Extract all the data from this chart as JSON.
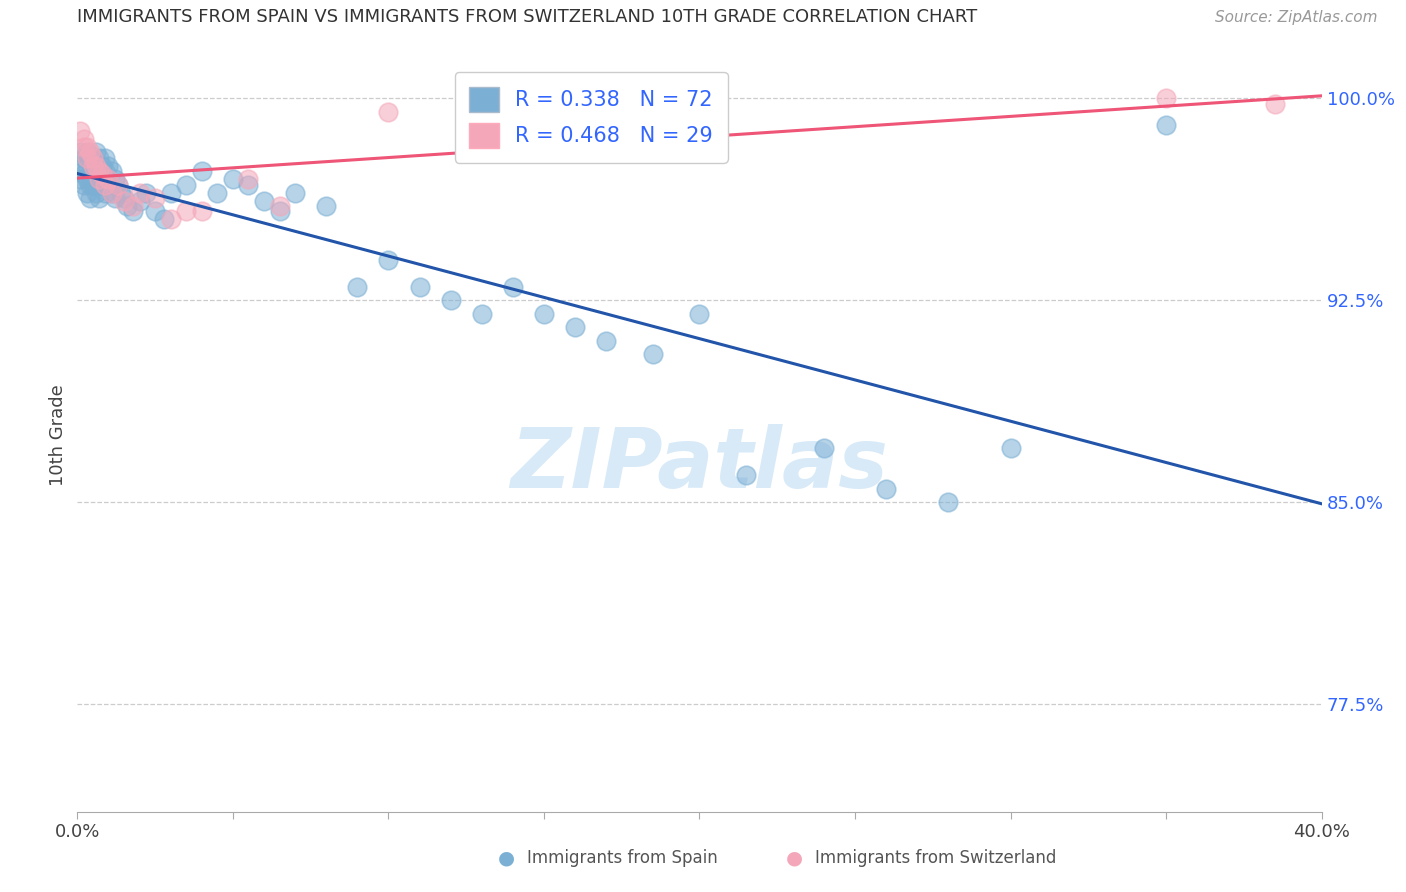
{
  "title": "IMMIGRANTS FROM SPAIN VS IMMIGRANTS FROM SWITZERLAND 10TH GRADE CORRELATION CHART",
  "source": "Source: ZipAtlas.com",
  "ylabel": "10th Grade",
  "xlim": [
    0.0,
    0.4
  ],
  "ylim": [
    0.735,
    1.015
  ],
  "ytick_vals": [
    0.775,
    0.85,
    0.925,
    1.0
  ],
  "ytick_labels": [
    "77.5%",
    "85.0%",
    "92.5%",
    "100.0%"
  ],
  "spain_color": "#7BAFD4",
  "switzerland_color": "#F4A7B9",
  "spain_line_color": "#2255AA",
  "switzerland_line_color": "#EE5577",
  "spain_R": 0.338,
  "spain_N": 72,
  "switzerland_R": 0.468,
  "switzerland_N": 29,
  "spain_x": [
    0.001,
    0.001,
    0.001,
    0.002,
    0.002,
    0.002,
    0.003,
    0.003,
    0.003,
    0.003,
    0.004,
    0.004,
    0.004,
    0.004,
    0.005,
    0.005,
    0.005,
    0.006,
    0.006,
    0.006,
    0.006,
    0.007,
    0.007,
    0.007,
    0.007,
    0.008,
    0.008,
    0.009,
    0.009,
    0.009,
    0.01,
    0.01,
    0.011,
    0.011,
    0.012,
    0.012,
    0.013,
    0.014,
    0.015,
    0.016,
    0.018,
    0.02,
    0.022,
    0.025,
    0.028,
    0.03,
    0.035,
    0.04,
    0.045,
    0.05,
    0.055,
    0.06,
    0.065,
    0.07,
    0.08,
    0.09,
    0.1,
    0.11,
    0.12,
    0.13,
    0.14,
    0.15,
    0.16,
    0.17,
    0.185,
    0.2,
    0.215,
    0.24,
    0.26,
    0.28,
    0.3,
    0.35
  ],
  "spain_y": [
    0.98,
    0.975,
    0.97,
    0.978,
    0.972,
    0.968,
    0.98,
    0.975,
    0.97,
    0.965,
    0.978,
    0.972,
    0.968,
    0.963,
    0.978,
    0.973,
    0.968,
    0.98,
    0.975,
    0.97,
    0.965,
    0.978,
    0.973,
    0.968,
    0.963,
    0.975,
    0.97,
    0.978,
    0.973,
    0.965,
    0.975,
    0.968,
    0.973,
    0.965,
    0.97,
    0.963,
    0.968,
    0.965,
    0.963,
    0.96,
    0.958,
    0.962,
    0.965,
    0.958,
    0.955,
    0.965,
    0.968,
    0.973,
    0.965,
    0.97,
    0.968,
    0.962,
    0.958,
    0.965,
    0.96,
    0.93,
    0.94,
    0.93,
    0.925,
    0.92,
    0.93,
    0.92,
    0.915,
    0.91,
    0.905,
    0.92,
    0.86,
    0.87,
    0.855,
    0.85,
    0.87,
    0.99
  ],
  "switzerland_x": [
    0.001,
    0.002,
    0.002,
    0.003,
    0.003,
    0.004,
    0.005,
    0.005,
    0.006,
    0.007,
    0.007,
    0.008,
    0.009,
    0.01,
    0.011,
    0.013,
    0.015,
    0.018,
    0.02,
    0.025,
    0.03,
    0.035,
    0.04,
    0.055,
    0.065,
    0.1,
    0.13,
    0.35,
    0.385
  ],
  "switzerland_y": [
    0.988,
    0.985,
    0.982,
    0.982,
    0.978,
    0.98,
    0.978,
    0.975,
    0.975,
    0.973,
    0.97,
    0.972,
    0.968,
    0.97,
    0.965,
    0.968,
    0.962,
    0.96,
    0.965,
    0.963,
    0.955,
    0.958,
    0.958,
    0.97,
    0.96,
    0.995,
    0.992,
    1.0,
    0.998
  ],
  "watermark_text": "ZIPatlas",
  "watermark_color": "#d8eaf8",
  "grid_color": "#cccccc",
  "right_axis_color": "#3366ff",
  "legend_box_color": "#cccccc",
  "bottom_legend_spain": "Immigrants from Spain",
  "bottom_legend_switz": "Immigrants from Switzerland"
}
